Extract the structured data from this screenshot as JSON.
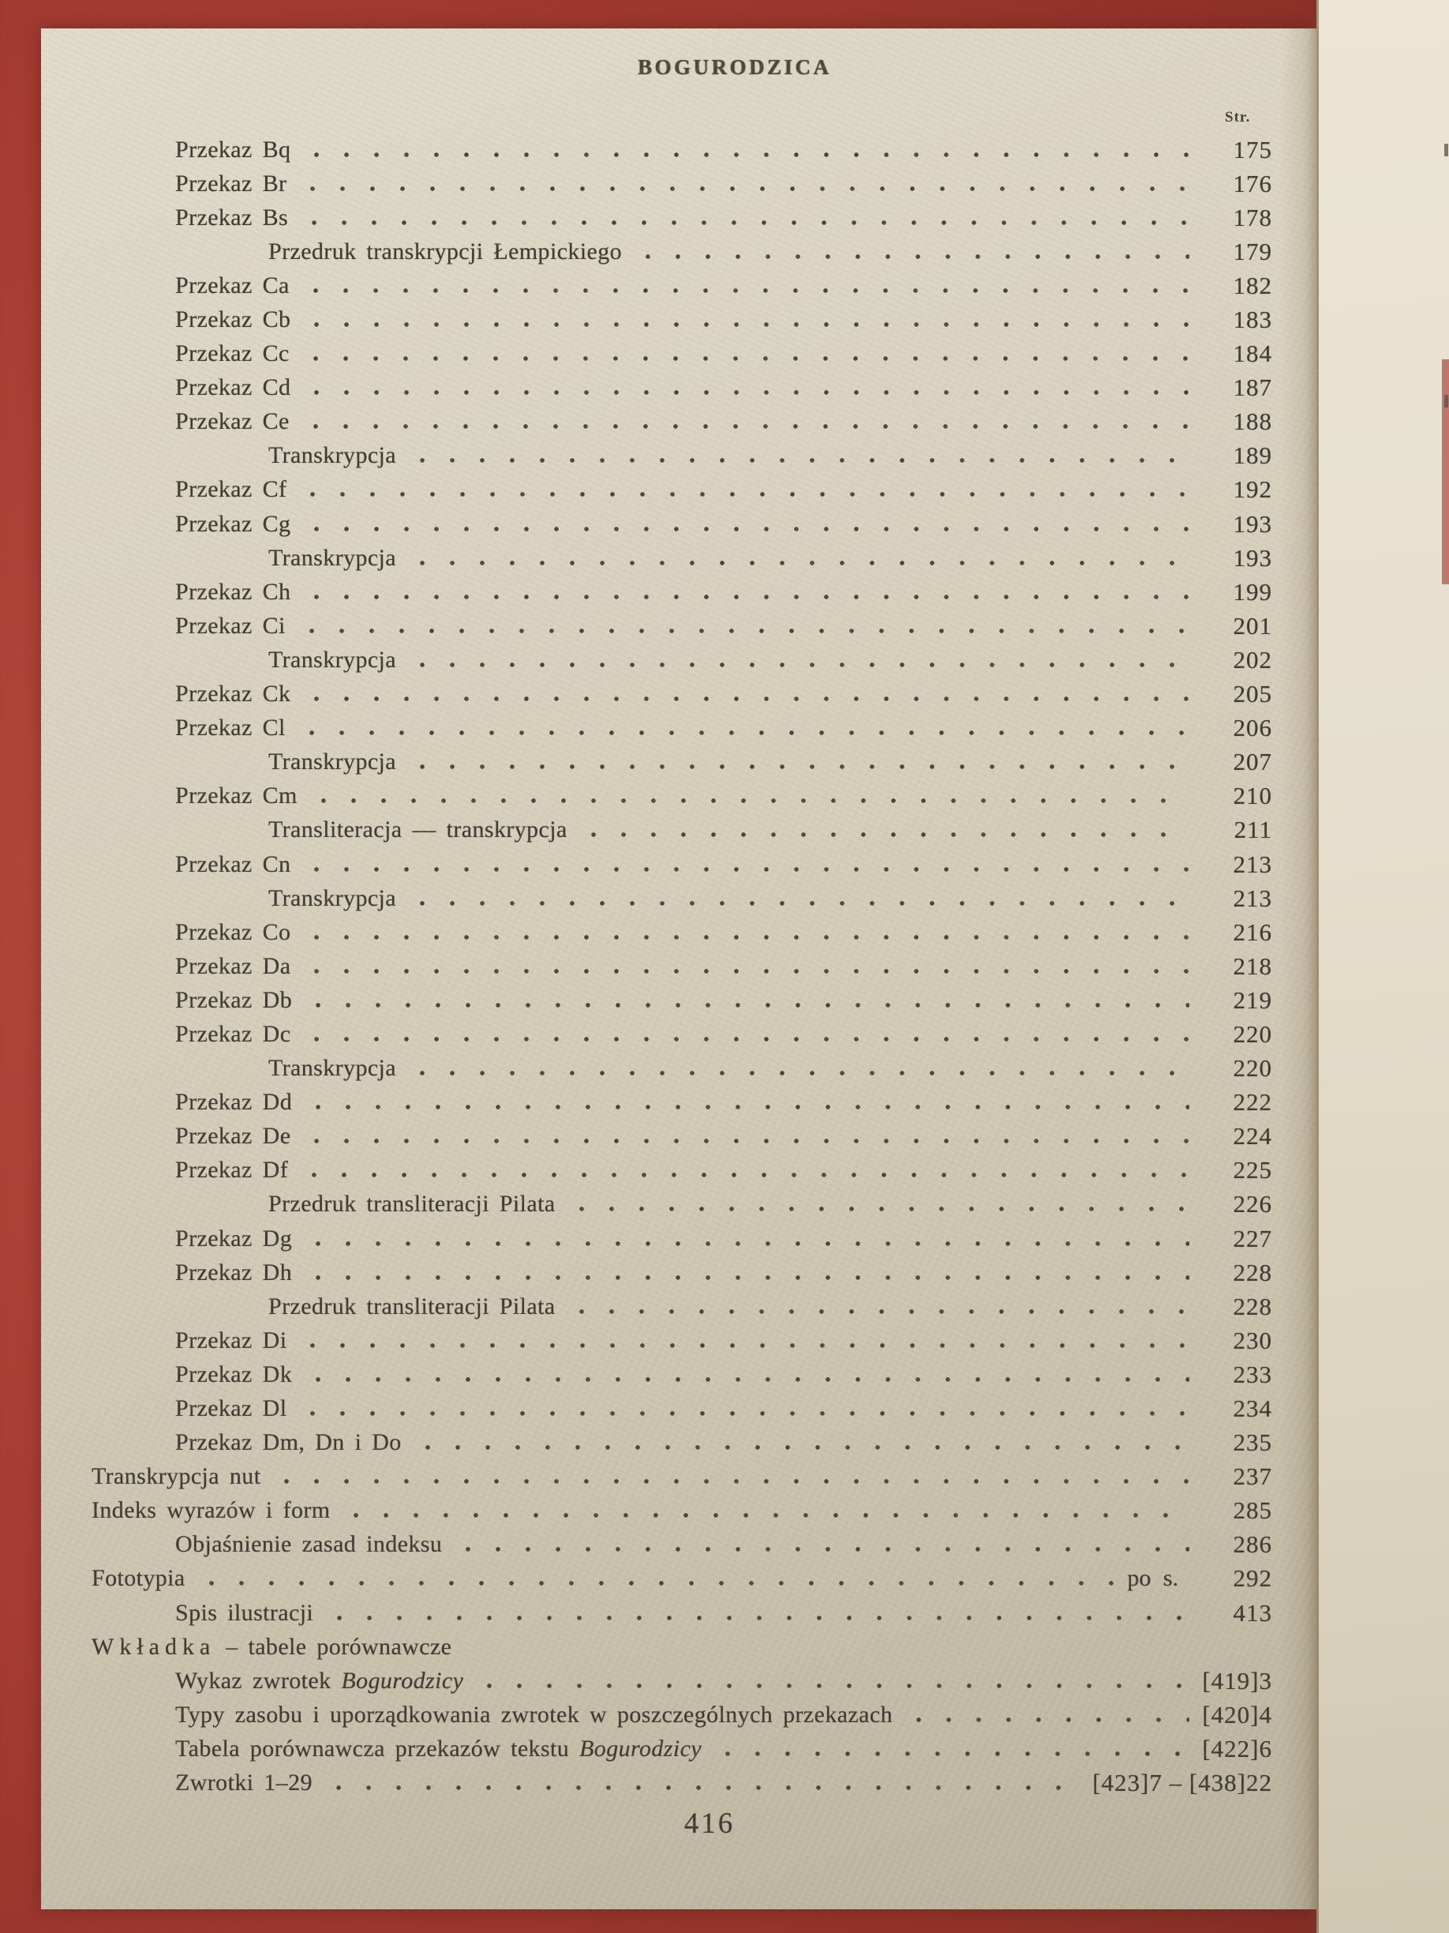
{
  "page": {
    "header_title": "BOGURODZICA",
    "column_header": "Str.",
    "footer_page_number": "416",
    "colors": {
      "background_red": "#a53b31",
      "paper": "#d6cfbc",
      "facing_page_paper": "#e6dfcd",
      "ink": "#3e3a32"
    }
  },
  "toc": {
    "rows": [
      {
        "indent": 1,
        "leader": true,
        "parts": [
          {
            "text": "Przekaz Bq"
          }
        ],
        "page": "175"
      },
      {
        "indent": 1,
        "leader": true,
        "parts": [
          {
            "text": "Przekaz Br"
          }
        ],
        "page": "176"
      },
      {
        "indent": 1,
        "leader": true,
        "parts": [
          {
            "text": "Przekaz Bs"
          }
        ],
        "page": "178"
      },
      {
        "indent": 2,
        "leader": true,
        "parts": [
          {
            "text": "Przedruk transkrypcji Łempickiego"
          }
        ],
        "page": "179"
      },
      {
        "indent": 1,
        "leader": true,
        "parts": [
          {
            "text": "Przekaz Ca"
          }
        ],
        "page": "182"
      },
      {
        "indent": 1,
        "leader": true,
        "parts": [
          {
            "text": "Przekaz Cb"
          }
        ],
        "page": "183"
      },
      {
        "indent": 1,
        "leader": true,
        "parts": [
          {
            "text": "Przekaz Cc"
          }
        ],
        "page": "184"
      },
      {
        "indent": 1,
        "leader": true,
        "parts": [
          {
            "text": "Przekaz Cd"
          }
        ],
        "page": "187"
      },
      {
        "indent": 1,
        "leader": true,
        "parts": [
          {
            "text": "Przekaz Ce"
          }
        ],
        "page": "188"
      },
      {
        "indent": 2,
        "leader": true,
        "parts": [
          {
            "text": "Transkrypcja"
          }
        ],
        "page": "189"
      },
      {
        "indent": 1,
        "leader": true,
        "parts": [
          {
            "text": "Przekaz Cf"
          }
        ],
        "page": "192"
      },
      {
        "indent": 1,
        "leader": true,
        "parts": [
          {
            "text": "Przekaz Cg"
          }
        ],
        "page": "193"
      },
      {
        "indent": 2,
        "leader": true,
        "parts": [
          {
            "text": "Transkrypcja"
          }
        ],
        "page": "193"
      },
      {
        "indent": 1,
        "leader": true,
        "parts": [
          {
            "text": "Przekaz Ch"
          }
        ],
        "page": "199"
      },
      {
        "indent": 1,
        "leader": true,
        "parts": [
          {
            "text": "Przekaz Ci"
          }
        ],
        "page": "201"
      },
      {
        "indent": 2,
        "leader": true,
        "parts": [
          {
            "text": "Transkrypcja"
          }
        ],
        "page": "202"
      },
      {
        "indent": 1,
        "leader": true,
        "parts": [
          {
            "text": "Przekaz Ck"
          }
        ],
        "page": "205"
      },
      {
        "indent": 1,
        "leader": true,
        "parts": [
          {
            "text": "Przekaz Cl"
          }
        ],
        "page": "206"
      },
      {
        "indent": 2,
        "leader": true,
        "parts": [
          {
            "text": "Transkrypcja"
          }
        ],
        "page": "207"
      },
      {
        "indent": 1,
        "leader": true,
        "parts": [
          {
            "text": "Przekaz Cm"
          }
        ],
        "page": "210"
      },
      {
        "indent": 2,
        "leader": true,
        "parts": [
          {
            "text": "Transliteracja — transkrypcja"
          }
        ],
        "page": "211"
      },
      {
        "indent": 1,
        "leader": true,
        "parts": [
          {
            "text": "Przekaz Cn"
          }
        ],
        "page": "213"
      },
      {
        "indent": 2,
        "leader": true,
        "parts": [
          {
            "text": "Transkrypcja"
          }
        ],
        "page": "213"
      },
      {
        "indent": 1,
        "leader": true,
        "parts": [
          {
            "text": "Przekaz Co"
          }
        ],
        "page": "216"
      },
      {
        "indent": 1,
        "leader": true,
        "parts": [
          {
            "text": "Przekaz Da"
          }
        ],
        "page": "218"
      },
      {
        "indent": 1,
        "leader": true,
        "parts": [
          {
            "text": "Przekaz Db"
          }
        ],
        "page": "219"
      },
      {
        "indent": 1,
        "leader": true,
        "parts": [
          {
            "text": "Przekaz Dc"
          }
        ],
        "page": "220"
      },
      {
        "indent": 2,
        "leader": true,
        "parts": [
          {
            "text": "Transkrypcja"
          }
        ],
        "page": "220"
      },
      {
        "indent": 1,
        "leader": true,
        "parts": [
          {
            "text": "Przekaz Dd"
          }
        ],
        "page": "222"
      },
      {
        "indent": 1,
        "leader": true,
        "parts": [
          {
            "text": "Przekaz De"
          }
        ],
        "page": "224"
      },
      {
        "indent": 1,
        "leader": true,
        "parts": [
          {
            "text": "Przekaz Df"
          }
        ],
        "page": "225"
      },
      {
        "indent": 2,
        "leader": true,
        "parts": [
          {
            "text": "Przedruk transliteracji Pilata"
          }
        ],
        "page": "226"
      },
      {
        "indent": 1,
        "leader": true,
        "parts": [
          {
            "text": "Przekaz Dg"
          }
        ],
        "page": "227"
      },
      {
        "indent": 1,
        "leader": true,
        "parts": [
          {
            "text": "Przekaz Dh"
          }
        ],
        "page": "228"
      },
      {
        "indent": 2,
        "leader": true,
        "parts": [
          {
            "text": "Przedruk transliteracji Pilata"
          }
        ],
        "page": "228"
      },
      {
        "indent": 1,
        "leader": true,
        "parts": [
          {
            "text": "Przekaz Di"
          }
        ],
        "page": "230"
      },
      {
        "indent": 1,
        "leader": true,
        "parts": [
          {
            "text": "Przekaz Dk"
          }
        ],
        "page": "233"
      },
      {
        "indent": 1,
        "leader": true,
        "parts": [
          {
            "text": "Przekaz Dl"
          }
        ],
        "page": "234"
      },
      {
        "indent": 1,
        "leader": true,
        "parts": [
          {
            "text": "Przekaz Dm, Dn i Do"
          }
        ],
        "page": "235"
      },
      {
        "indent": 0,
        "leader": true,
        "parts": [
          {
            "text": "Transkrypcja nut"
          }
        ],
        "page": "237"
      },
      {
        "indent": 0,
        "leader": true,
        "parts": [
          {
            "text": "Indeks wyrazów i form"
          }
        ],
        "page": "285"
      },
      {
        "indent": 1,
        "leader": true,
        "parts": [
          {
            "text": "Objaśnienie zasad indeksu"
          }
        ],
        "page": "286"
      },
      {
        "indent": 0,
        "leader": true,
        "parts": [
          {
            "text": "Fototypia"
          }
        ],
        "page_prefix": "po s.",
        "page": "292"
      },
      {
        "indent": 1,
        "leader": true,
        "parts": [
          {
            "text": "Spis ilustracji"
          }
        ],
        "page": "413"
      },
      {
        "indent": 0,
        "leader": false,
        "parts": [
          {
            "text": "Wkładka",
            "spaced": true
          },
          {
            "text": " – tabele porównawcze"
          }
        ],
        "page": ""
      },
      {
        "indent": 1,
        "leader": true,
        "parts": [
          {
            "text": "Wykaz zwrotek "
          },
          {
            "text": "Bogurodzicy",
            "italic": true
          }
        ],
        "page": "[419]3"
      },
      {
        "indent": 1,
        "leader": true,
        "parts": [
          {
            "text": "Typy zasobu i uporządkowania zwrotek w poszczególnych przekazach"
          }
        ],
        "page": "[420]4"
      },
      {
        "indent": 1,
        "leader": true,
        "parts": [
          {
            "text": "Tabela porównawcza przekazów tekstu "
          },
          {
            "text": "Bogurodzicy",
            "italic": true
          }
        ],
        "page": "[422]6"
      },
      {
        "indent": 1,
        "leader": true,
        "parts": [
          {
            "text": "Zwrotki 1–29"
          }
        ],
        "page": "[423]7 – [438]22"
      }
    ]
  }
}
